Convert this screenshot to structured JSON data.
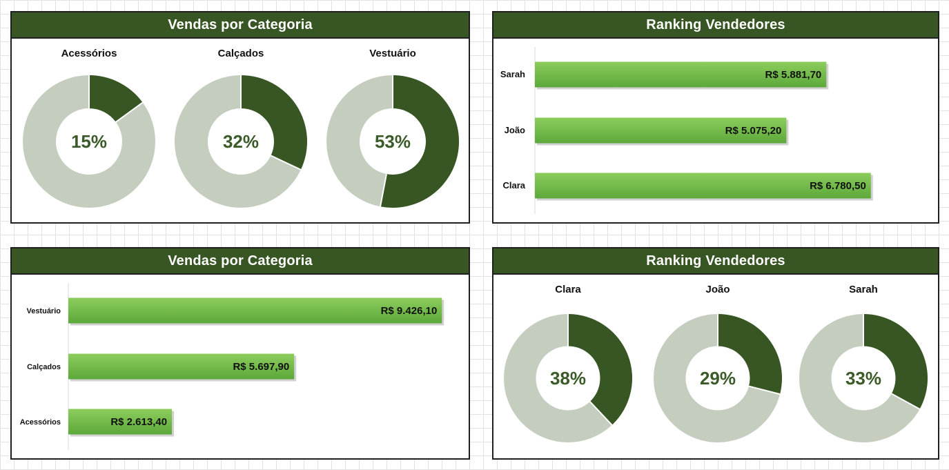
{
  "colors": {
    "header_bg": "#375623",
    "donut_main": "#375623",
    "donut_rest": "#c5cdbf",
    "bar_light": "#8ccd5c",
    "bar_dark": "#5ba83a",
    "pct_text": "#3a5a28"
  },
  "panels": {
    "top_left": {
      "title": "Vendas por Categoria"
    },
    "top_right": {
      "title": "Ranking Vendedores"
    },
    "bottom_left": {
      "title": "Vendas por Categoria"
    },
    "bottom_right": {
      "title": "Ranking Vendedores"
    }
  },
  "chart_data": [
    {
      "id": "category-donuts",
      "type": "pie",
      "title": "Vendas por Categoria",
      "donuts": [
        {
          "label": "Acessórios",
          "percent": 15,
          "percent_label": "15%"
        },
        {
          "label": "Calçados",
          "percent": 32,
          "percent_label": "32%"
        },
        {
          "label": "Vestuário",
          "percent": 53,
          "percent_label": "53%"
        }
      ]
    },
    {
      "id": "seller-bars",
      "type": "bar",
      "orientation": "horizontal",
      "title": "Ranking Vendedores",
      "categories": [
        "Sarah",
        "João",
        "Clara"
      ],
      "values": [
        5881.7,
        5075.2,
        6780.5
      ],
      "value_labels": [
        "R$ 5.881,70",
        "R$ 5.075,20",
        "R$ 6.780,50"
      ],
      "xlim": [
        0,
        7800
      ]
    },
    {
      "id": "category-bars",
      "type": "bar",
      "orientation": "horizontal",
      "title": "Vendas por Categoria",
      "categories": [
        "Vestuário",
        "Calçados",
        "Acessórios"
      ],
      "values": [
        9426.1,
        5697.9,
        2613.4
      ],
      "value_labels": [
        "R$ 9.426,10",
        "R$ 5.697,90",
        "R$ 2.613,40"
      ],
      "xlim": [
        0,
        10100
      ]
    },
    {
      "id": "seller-donuts",
      "type": "pie",
      "title": "Ranking Vendedores",
      "donuts": [
        {
          "label": "Clara",
          "percent": 38,
          "percent_label": "38%"
        },
        {
          "label": "João",
          "percent": 29,
          "percent_label": "29%"
        },
        {
          "label": "Sarah",
          "percent": 33,
          "percent_label": "33%"
        }
      ]
    }
  ]
}
